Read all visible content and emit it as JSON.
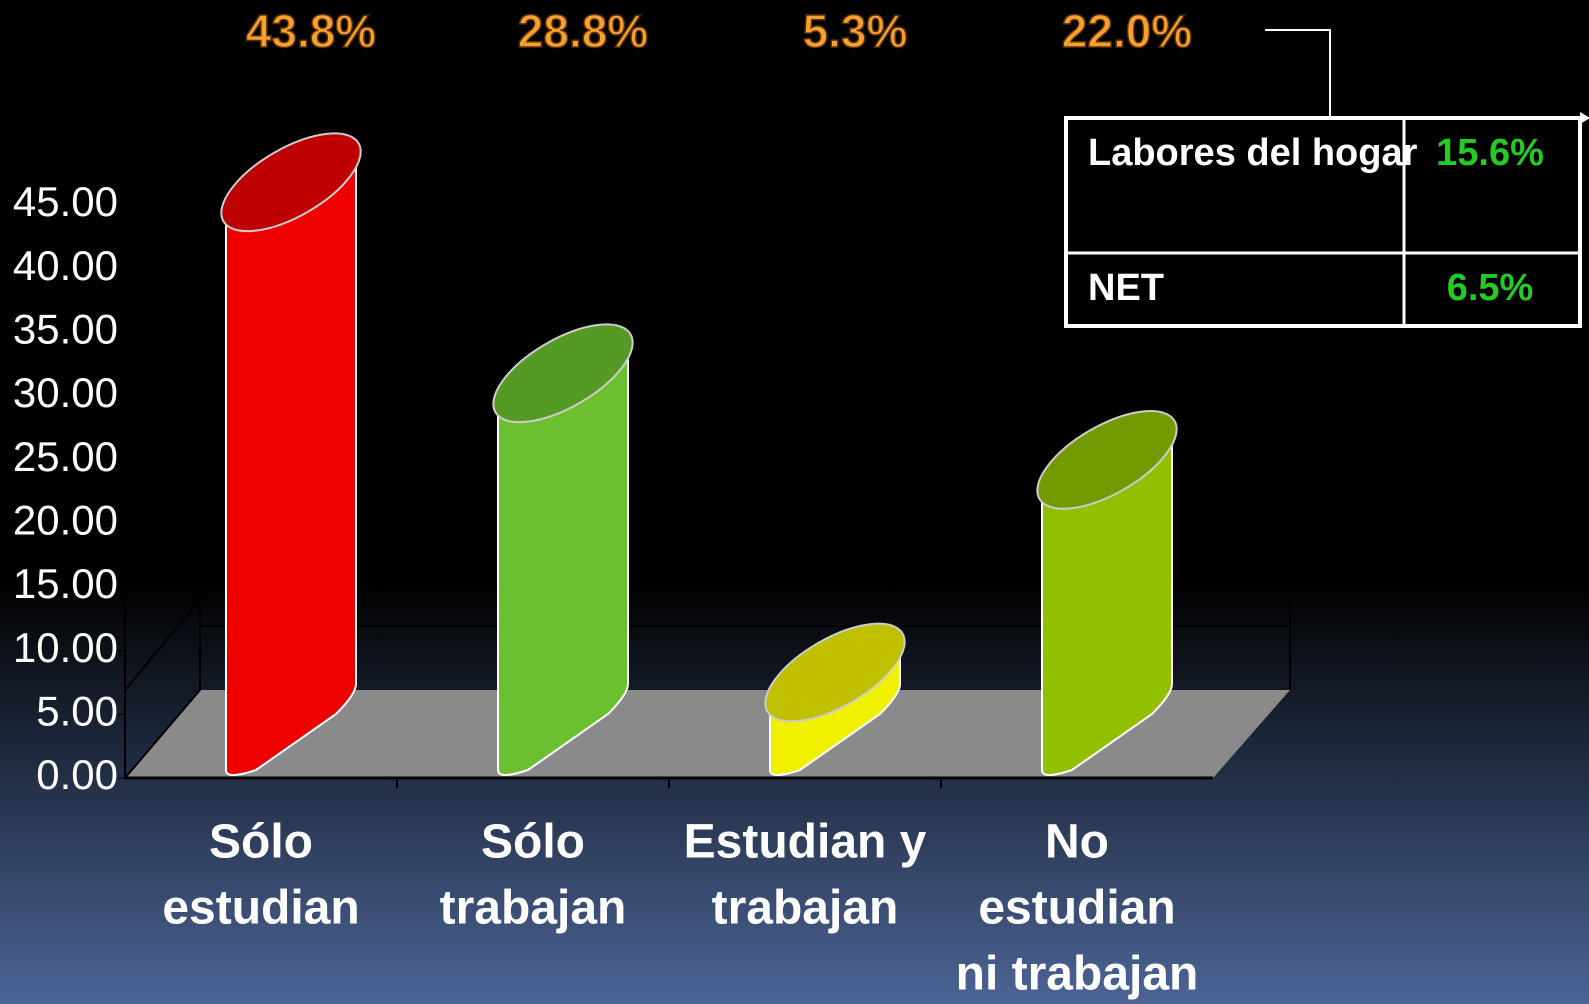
{
  "chart_data": {
    "type": "bar",
    "categories": [
      [
        "Sólo",
        "estudian"
      ],
      [
        "Sólo",
        "trabajan"
      ],
      [
        "Estudian y",
        "trabajan"
      ],
      [
        "No",
        "estudian",
        "ni trabajan"
      ]
    ],
    "values": [
      43.8,
      28.8,
      5.3,
      22.0
    ],
    "value_labels": [
      "43.8%",
      "28.8%",
      "5.3%",
      "22.0%"
    ],
    "colors": [
      "#ee0000",
      "#6cc030",
      "#f0f000",
      "#90c000"
    ],
    "ylim": [
      0,
      45
    ],
    "yticks": [
      {
        "value": 0,
        "label": "0.00"
      },
      {
        "value": 5,
        "label": "5.00"
      },
      {
        "value": 10,
        "label": "10.00"
      },
      {
        "value": 15,
        "label": "15.00"
      },
      {
        "value": 20,
        "label": "20.00"
      },
      {
        "value": 25,
        "label": "25.00"
      },
      {
        "value": 30,
        "label": "30.00"
      },
      {
        "value": 35,
        "label": "35.00"
      },
      {
        "value": 40,
        "label": "40.00"
      },
      {
        "value": 45,
        "label": "45.00"
      }
    ],
    "inset_table": {
      "rows": [
        [
          "Labores del hogar",
          "15.6%"
        ],
        [
          "NET",
          "6.5%"
        ]
      ]
    }
  }
}
